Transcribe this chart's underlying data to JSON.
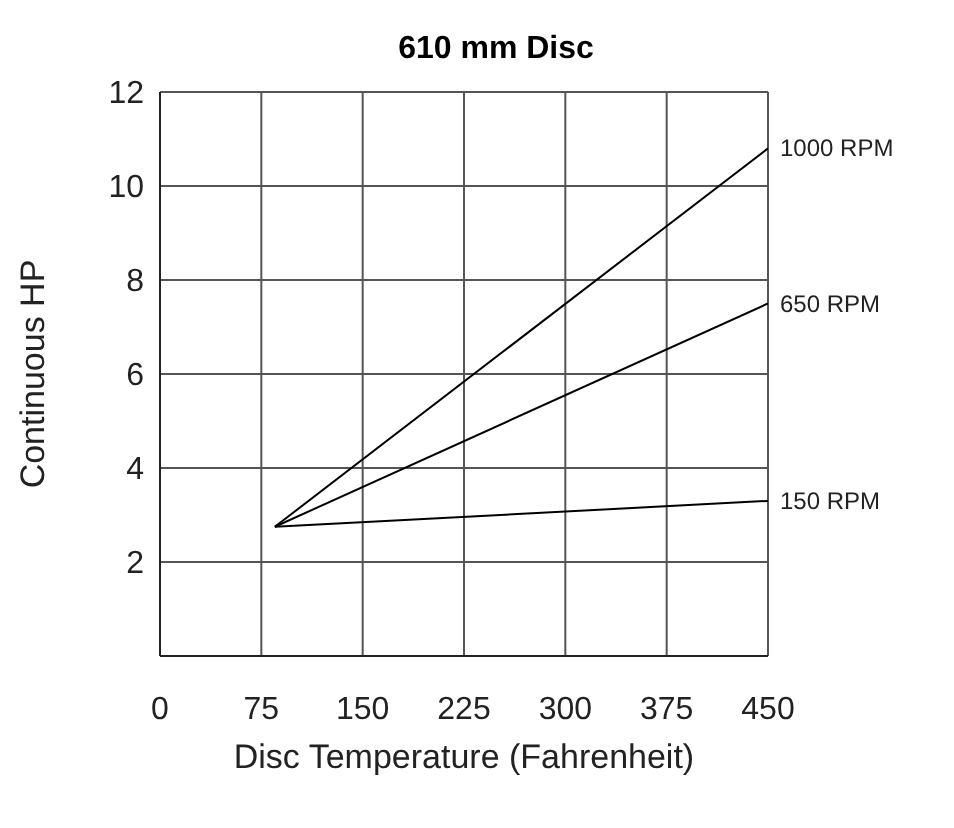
{
  "chart_data": {
    "type": "line",
    "title": "610 mm Disc",
    "xlabel": "Disc Temperature (Fahrenheit)",
    "ylabel": "Continuous HP",
    "x": [
      85,
      450
    ],
    "series": [
      {
        "name": "1000 RPM",
        "color": "#000000",
        "values": [
          2.75,
          10.8
        ]
      },
      {
        "name": "650 RPM",
        "color": "#000000",
        "values": [
          2.75,
          7.5
        ]
      },
      {
        "name": "150 RPM",
        "color": "#000000",
        "values": [
          2.75,
          3.3
        ]
      }
    ],
    "xlim": [
      0,
      450
    ],
    "xticks": [
      0,
      75,
      150,
      225,
      300,
      375,
      450
    ],
    "ylim": [
      0,
      12
    ],
    "yticks": [
      2,
      4,
      6,
      8,
      10,
      12
    ],
    "grid": true,
    "marker": "none",
    "line_style": "solid"
  }
}
